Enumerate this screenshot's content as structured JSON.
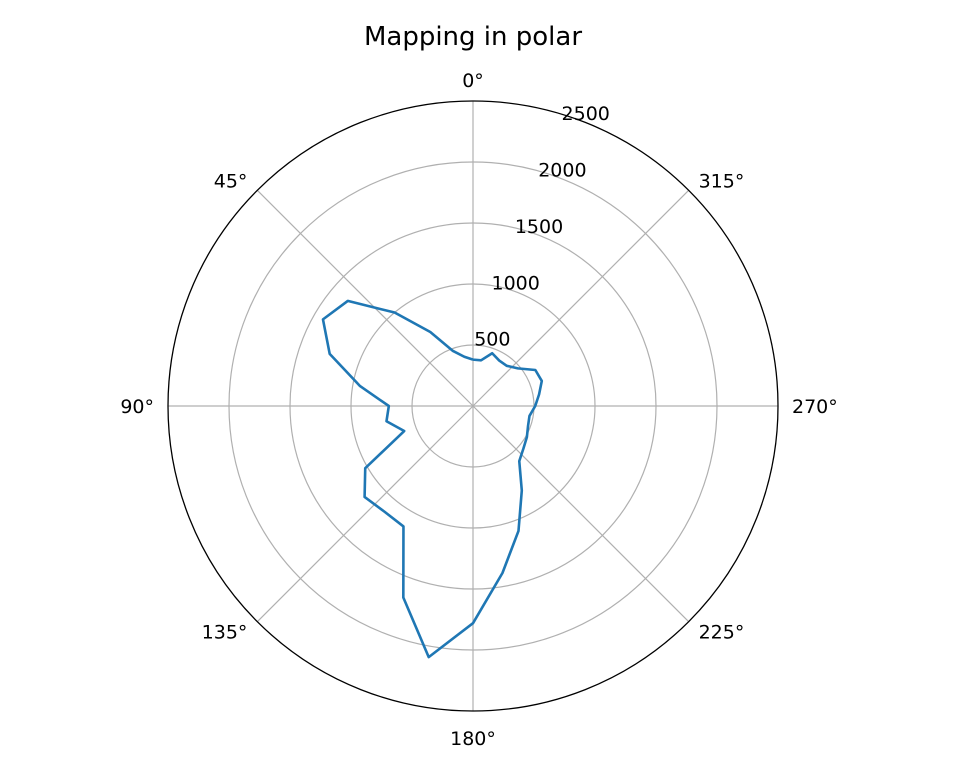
{
  "chart_data": {
    "type": "line",
    "projection": "polar",
    "title": "Mapping in polar",
    "theta_zero_location": "top",
    "theta_direction": "counterclockwise",
    "theta_tick_labels": [
      "0°",
      "45°",
      "90°",
      "135°",
      "180°",
      "225°",
      "270°",
      "315°"
    ],
    "theta_ticks_deg": [
      0,
      45,
      90,
      135,
      180,
      225,
      270,
      315
    ],
    "r_ticks": [
      500,
      1000,
      1500,
      2000,
      2500
    ],
    "r_tick_labels": [
      "500",
      "1000",
      "1500",
      "2000",
      "2500"
    ],
    "rlim": [
      0,
      2500
    ],
    "grid": true,
    "line_color": "#1f77b4",
    "series": [
      {
        "theta_deg": [
          0,
          10,
          20,
          30,
          40,
          50,
          60,
          70,
          80,
          90,
          100,
          110,
          120,
          130,
          140,
          150,
          160,
          170,
          180,
          190,
          200,
          210,
          220,
          230,
          240,
          250,
          260,
          270,
          280,
          290,
          300,
          310,
          320,
          330,
          340,
          350,
          360
        ],
        "r": [
          380,
          410,
          480,
          700,
          1000,
          1340,
          1420,
          1250,
          940,
          690,
          720,
          600,
          1020,
          1160,
          1130,
          1140,
          1670,
          2090,
          1780,
          1390,
          1090,
          800,
          590,
          540,
          510,
          480,
          470,
          510,
          550,
          600,
          590,
          480,
          430,
          430,
          460,
          380,
          380
        ]
      }
    ]
  }
}
